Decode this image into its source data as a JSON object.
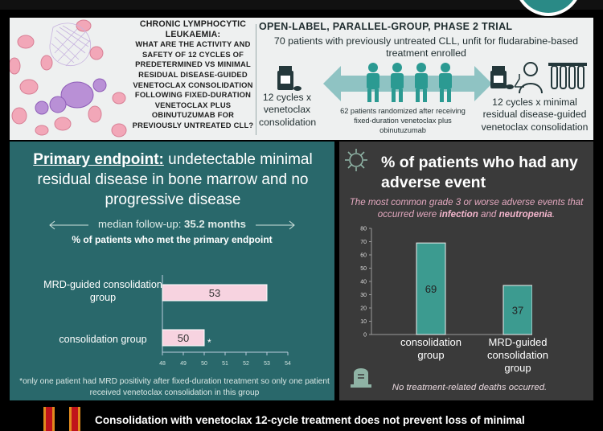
{
  "question": {
    "title": "CHRONIC LYMPHOCYTIC LEUKAEMIA:",
    "text": "WHAT ARE THE ACTIVITY AND SAFETY OF 12 CYCLES OF PREDETERMINED VS MINIMAL RESIDUAL DISEASE-GUIDED VENETOCLAX CONSOLIDATION FOLLOWING FIXED-DURATION VENETOCLAX PLUS OBINUTUZUMAB FOR PREVIOUSLY UNTREATED CLL?"
  },
  "trial": {
    "title": "OPEN-LABEL, PARALLEL-GROUP, PHASE 2 TRIAL",
    "description": "70 patients with previously untreated CLL, unfit for fludarabine-based treatment enrolled",
    "left_arm": "12 cycles x venetoclax consolidation",
    "right_arm": "12 cycles x minimal residual disease-guided venetoclax consolidation",
    "randomized": "62 patients randomized after receiving fixed-duration venetoclax plus obinutuzumab"
  },
  "primary": {
    "title_bold": "Primary endpoint:",
    "title_rest": " undetectable minimal residual disease in bone marrow and no progressive disease",
    "followup_label": "median follow-up: ",
    "followup_value": "35.2 months",
    "caption": "% of patients who met the primary endpoint",
    "footnote": "*only one patient had MRD positivity after fixed-duration treatment so only one patient received venetoclax consolidation in this group",
    "asterisk": "*"
  },
  "ae": {
    "title": "% of patients who had any adverse event",
    "subtitle_pre": "The most common grade 3 or worse adverse events that occurred were ",
    "subtitle_b1": "infection",
    "subtitle_mid": " and ",
    "subtitle_b2": "neutropenia",
    "subtitle_end": ".",
    "footer": "No treatment-related deaths occurred."
  },
  "conclusion": "Consolidation with venetoclax 12-cycle treatment does not prevent loss of minimal",
  "colors": {
    "teal_panel": "#29686b",
    "dark_panel": "#3a3a3a",
    "pink_bar": "#f7d3e0",
    "teal_bar": "#3c9b90",
    "header_bg": "#eef0f0",
    "arrow": "#8fc3c3",
    "person": "#2b9a92"
  },
  "chart_data": [
    {
      "type": "bar",
      "orientation": "horizontal",
      "categories": [
        "MRD-guided consolidation group",
        "consolidation group"
      ],
      "values": [
        53,
        50
      ],
      "xlim": [
        48,
        54
      ],
      "xticks": [
        "48",
        "49",
        "50",
        "51",
        "52",
        "53",
        "54"
      ],
      "title": "% of patients who met the primary endpoint",
      "grid": false
    },
    {
      "type": "bar",
      "categories": [
        "consolidation group",
        "MRD-guided consolidation group"
      ],
      "values": [
        69,
        37
      ],
      "ylim": [
        0,
        80
      ],
      "yticks": [
        "0",
        "10",
        "20",
        "30",
        "40",
        "50",
        "60",
        "70",
        "80"
      ],
      "title": "% of patients who had any adverse event",
      "grid": false
    }
  ]
}
